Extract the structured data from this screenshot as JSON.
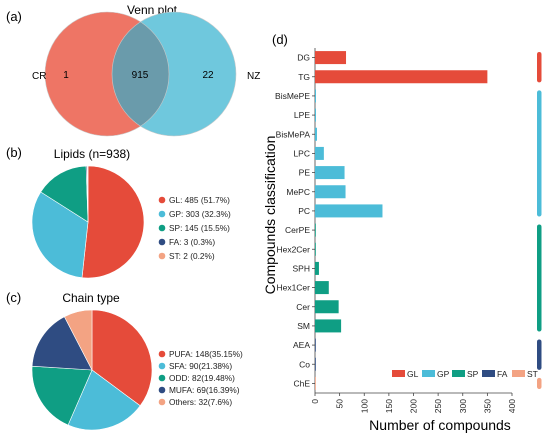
{
  "panels": {
    "a": "(a)",
    "b": "(b)",
    "c": "(c)",
    "d": "(d)"
  },
  "colors": {
    "GL": "#e54b3a",
    "GP": "#4cbcd8",
    "SP": "#0f9e84",
    "FA": "#2f4c82",
    "ST": "#f3a383",
    "venn_left": "#ee7565",
    "venn_right": "#6fc8dd",
    "venn_overlap": "#6a9bab"
  },
  "chart_data": [
    {
      "type": "venn",
      "title": "Venn plot",
      "sets": [
        {
          "name": "CR",
          "only": "1"
        },
        {
          "name": "NZ",
          "only": "22"
        }
      ],
      "intersection": "915"
    },
    {
      "type": "pie",
      "title": "Lipids (n=938)",
      "slices": [
        {
          "key": "GL",
          "value": 485,
          "label": "GL: 485 (51.7%)"
        },
        {
          "key": "GP",
          "value": 303,
          "label": "GP: 303 (32.3%)"
        },
        {
          "key": "SP",
          "value": 145,
          "label": "SP: 145 (15.5%)"
        },
        {
          "key": "FA",
          "value": 3,
          "label": "FA: 3 (0.3%)"
        },
        {
          "key": "ST",
          "value": 2,
          "label": "ST: 2 (0.2%)"
        }
      ]
    },
    {
      "type": "pie",
      "title": "Chain type",
      "slices": [
        {
          "key": "GL",
          "value": 148,
          "label": "PUFA: 148(35.15%)"
        },
        {
          "key": "GP",
          "value": 90,
          "label": "SFA: 90(21.38%)"
        },
        {
          "key": "SP",
          "value": 82,
          "label": "ODD: 82(19.48%)"
        },
        {
          "key": "FA",
          "value": 69,
          "label": "MUFA: 69(16.39%)"
        },
        {
          "key": "ST",
          "value": 32,
          "label": "Others: 32(7.6%)"
        }
      ]
    },
    {
      "type": "bar",
      "orientation": "horizontal",
      "xlabel": "Number of compounds",
      "ylabel": "Compounds classification",
      "xlim": [
        0,
        400
      ],
      "xticks": [
        "0",
        "50",
        "100",
        "150",
        "200",
        "250",
        "300",
        "350",
        "400"
      ],
      "categories": [
        "DG",
        "TG",
        "BisMePE",
        "LPE",
        "BisMePA",
        "LPC",
        "PE",
        "MePC",
        "PC",
        "CerPE",
        "Hex2Cer",
        "SPH",
        "Hex1Cer",
        "Cer",
        "SM",
        "AEA",
        "Co",
        "ChE"
      ],
      "values": [
        63,
        350,
        2,
        2,
        4,
        18,
        60,
        62,
        137,
        1,
        1,
        8,
        28,
        48,
        53,
        1,
        1,
        1
      ],
      "groups": [
        "GL",
        "GL",
        "GP",
        "GP",
        "GP",
        "GP",
        "GP",
        "GP",
        "GP",
        "SP",
        "SP",
        "SP",
        "SP",
        "SP",
        "SP",
        "FA",
        "FA",
        "ST"
      ],
      "legend": [
        "GL",
        "GP",
        "SP",
        "FA",
        "ST"
      ],
      "legend_position": "bottom-right"
    }
  ]
}
